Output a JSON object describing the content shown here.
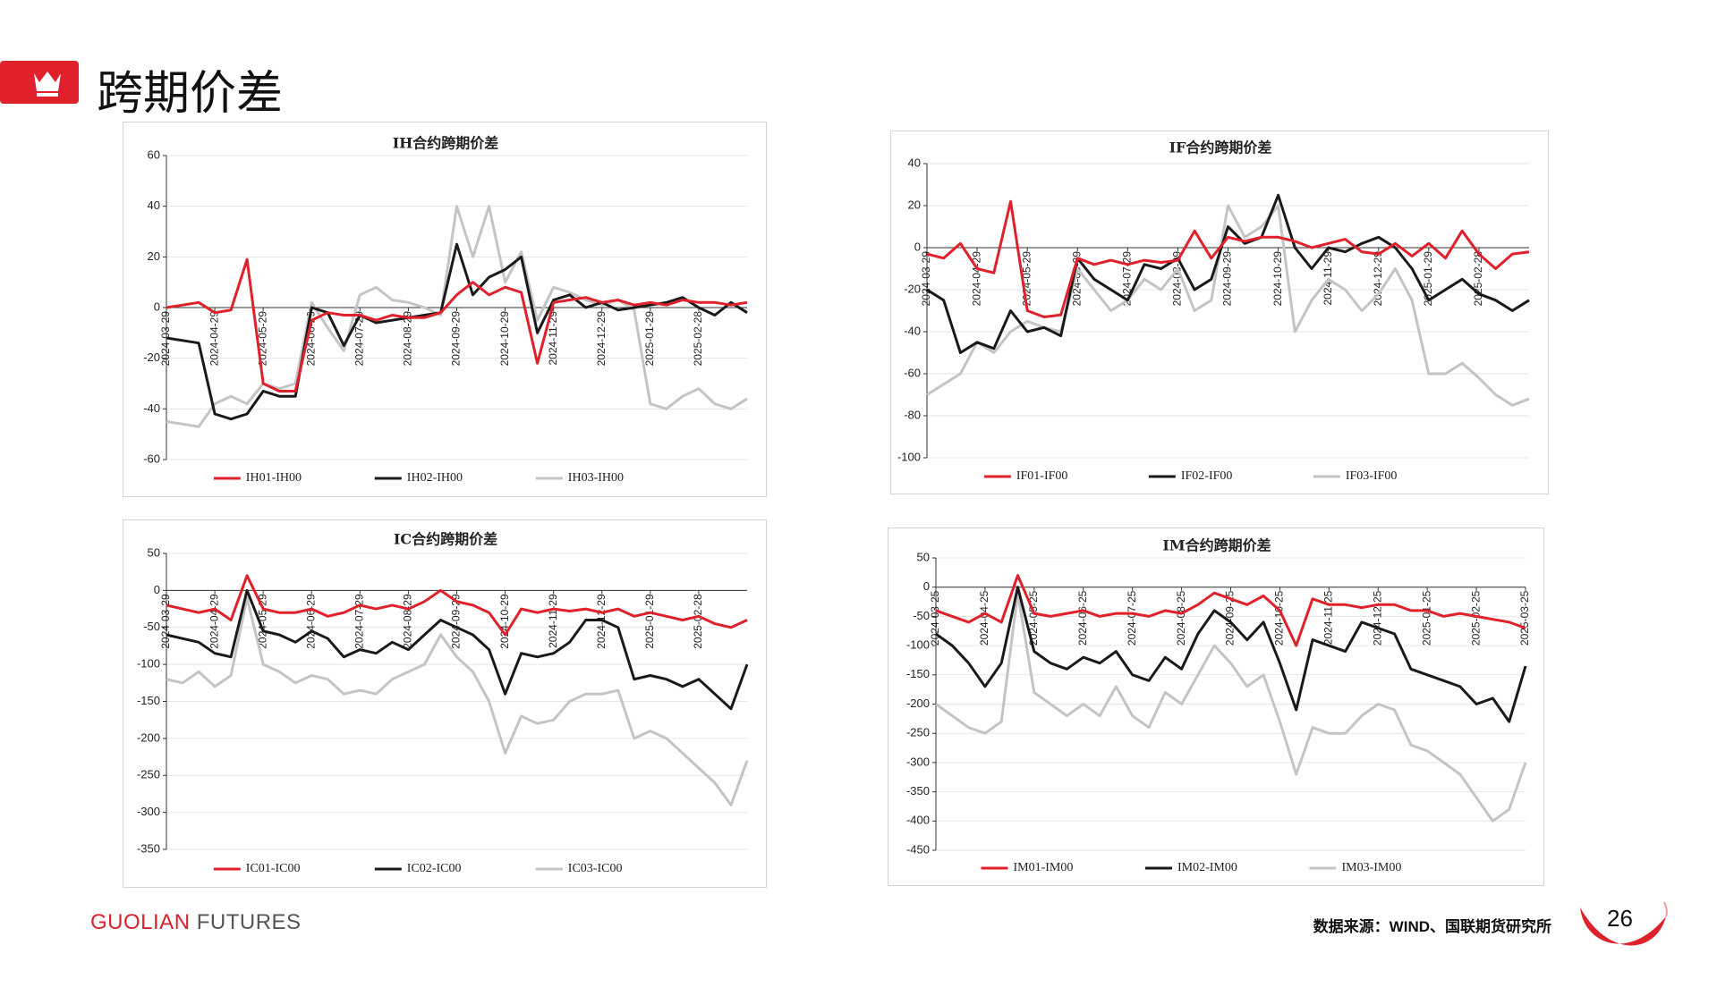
{
  "header": {
    "title": "跨期价差"
  },
  "footer": {
    "brand_1": "GUOLIAN",
    "brand_2": "FUTURES",
    "source": "数据来源：WIND、国联期货研究所",
    "page": "26"
  },
  "chart_data": [
    {
      "type": "line",
      "title": "IH合约跨期价差",
      "categories": [
        "2024-03-29",
        null,
        null,
        "2024-04-29",
        null,
        null,
        "2024-05-29",
        null,
        null,
        "2024-06-29",
        null,
        null,
        "2024-07-29",
        null,
        null,
        "2024-08-29",
        null,
        null,
        "2024-09-29",
        null,
        null,
        "2024-10-29",
        null,
        null,
        "2024-11-29",
        null,
        null,
        "2024-12-29",
        null,
        null,
        "2025-01-29",
        null,
        null,
        "2025-02-28",
        null,
        null,
        null
      ],
      "series": [
        {
          "name": "IH01-IH00",
          "color": "#e0202a",
          "values": [
            0,
            1,
            2,
            -2,
            -1,
            19,
            -30,
            -33,
            -33,
            -5,
            -2,
            -3,
            -3,
            -5,
            -3,
            -4,
            -4,
            -2,
            5,
            10,
            5,
            8,
            6,
            -22,
            2,
            3,
            4,
            2,
            3,
            1,
            2,
            1,
            3,
            2,
            2,
            1,
            2
          ]
        },
        {
          "name": "IH02-IH00",
          "color": "#1a1a1a",
          "values": [
            -12,
            -13,
            -14,
            -42,
            -44,
            -42,
            -33,
            -35,
            -35,
            0,
            -2,
            -15,
            -3,
            -6,
            -5,
            -4,
            -3,
            -2,
            25,
            5,
            12,
            15,
            20,
            -10,
            3,
            5,
            0,
            2,
            -1,
            0,
            1,
            2,
            4,
            0,
            -3,
            2,
            -2
          ]
        },
        {
          "name": "IH03-IH00",
          "color": "#c4c4c4",
          "values": [
            -45,
            -46,
            -47,
            -38,
            -35,
            -38,
            -30,
            -32,
            -30,
            2,
            -8,
            -17,
            5,
            8,
            3,
            2,
            0,
            -3,
            40,
            20,
            40,
            10,
            22,
            -5,
            8,
            6,
            3,
            1,
            3,
            -1,
            -38,
            -40,
            -35,
            -32,
            -38,
            -40,
            -36
          ]
        }
      ],
      "ylim": [
        -60,
        60
      ],
      "yticks": [
        -60,
        -40,
        -20,
        0,
        20,
        40,
        60
      ],
      "grid": true
    },
    {
      "type": "line",
      "title": "IF合约跨期价差",
      "categories": [
        "2024-03-29",
        null,
        null,
        "2024-04-29",
        null,
        null,
        "2024-05-29",
        null,
        null,
        "2024-06-29",
        null,
        null,
        "2024-07-29",
        null,
        null,
        "2024-08-29",
        null,
        null,
        "2024-09-29",
        null,
        null,
        "2024-10-29",
        null,
        null,
        "2024-11-29",
        null,
        null,
        "2024-12-29",
        null,
        null,
        "2025-01-29",
        null,
        null,
        "2025-02-28",
        null,
        null,
        null
      ],
      "series": [
        {
          "name": "IF01-IF00",
          "color": "#e0202a",
          "values": [
            -3,
            -5,
            2,
            -10,
            -12,
            22,
            -30,
            -33,
            -32,
            -5,
            -8,
            -6,
            -8,
            -6,
            -7,
            -6,
            8,
            -5,
            5,
            3,
            5,
            5,
            3,
            0,
            2,
            4,
            -2,
            -3,
            2,
            -4,
            2,
            -5,
            8,
            -3,
            -10,
            -3,
            -2
          ]
        },
        {
          "name": "IF02-IF00",
          "color": "#1a1a1a",
          "values": [
            -20,
            -25,
            -50,
            -45,
            -48,
            -30,
            -40,
            -38,
            -42,
            -5,
            -15,
            -20,
            -25,
            -8,
            -10,
            -5,
            -20,
            -15,
            10,
            2,
            5,
            25,
            0,
            -10,
            0,
            -2,
            2,
            5,
            0,
            -10,
            -25,
            -20,
            -15,
            -22,
            -25,
            -30,
            -25
          ]
        },
        {
          "name": "IF03-IF00",
          "color": "#c4c4c4",
          "values": [
            -70,
            -65,
            -60,
            -45,
            -50,
            -40,
            -35,
            -38,
            -40,
            -10,
            -20,
            -30,
            -25,
            -15,
            -20,
            -10,
            -30,
            -25,
            20,
            5,
            10,
            20,
            -40,
            -25,
            -15,
            -20,
            -30,
            -22,
            -10,
            -25,
            -60,
            -60,
            -55,
            -62,
            -70,
            -75,
            -72
          ]
        }
      ],
      "ylim": [
        -100,
        40
      ],
      "yticks": [
        -100,
        -80,
        -60,
        -40,
        -20,
        0,
        20,
        40
      ],
      "grid": true
    },
    {
      "type": "line",
      "title": "IC合约跨期价差",
      "categories": [
        "2024-03-29",
        null,
        null,
        "2024-04-29",
        null,
        null,
        "2024-05-29",
        null,
        null,
        "2024-06-29",
        null,
        null,
        "2024-07-29",
        null,
        null,
        "2024-08-29",
        null,
        null,
        "2024-09-29",
        null,
        null,
        "2024-10-29",
        null,
        null,
        "2024-11-29",
        null,
        null,
        "2024-12-29",
        null,
        null,
        "2025-01-29",
        null,
        null,
        "2025-02-28",
        null,
        null,
        null
      ],
      "series": [
        {
          "name": "IC01-IC00",
          "color": "#e0202a",
          "values": [
            -20,
            -25,
            -30,
            -25,
            -40,
            20,
            -25,
            -30,
            -30,
            -25,
            -35,
            -30,
            -20,
            -25,
            -20,
            -25,
            -15,
            0,
            -15,
            -20,
            -30,
            -60,
            -25,
            -30,
            -25,
            -28,
            -25,
            -30,
            -25,
            -35,
            -30,
            -35,
            -40,
            -35,
            -45,
            -50,
            -40
          ]
        },
        {
          "name": "IC02-IC00",
          "color": "#1a1a1a",
          "values": [
            -60,
            -65,
            -70,
            -85,
            -90,
            0,
            -55,
            -60,
            -70,
            -55,
            -65,
            -90,
            -80,
            -85,
            -70,
            -80,
            -60,
            -40,
            -50,
            -60,
            -80,
            -140,
            -85,
            -90,
            -85,
            -70,
            -40,
            -40,
            -50,
            -120,
            -115,
            -120,
            -130,
            -120,
            -140,
            -160,
            -100
          ]
        },
        {
          "name": "IC03-IC00",
          "color": "#c4c4c4",
          "values": [
            -120,
            -125,
            -110,
            -130,
            -115,
            -10,
            -100,
            -110,
            -125,
            -115,
            -120,
            -140,
            -135,
            -140,
            -120,
            -110,
            -100,
            -60,
            -90,
            -110,
            -150,
            -220,
            -170,
            -180,
            -175,
            -150,
            -140,
            -140,
            -135,
            -200,
            -190,
            -200,
            -220,
            -240,
            -260,
            -290,
            -230
          ]
        }
      ],
      "ylim": [
        -350,
        50
      ],
      "yticks": [
        -350,
        -300,
        -250,
        -200,
        -150,
        -100,
        -50,
        0,
        50
      ],
      "grid": true
    },
    {
      "type": "line",
      "title": "IM合约跨期价差",
      "categories": [
        "2024-03-25",
        null,
        null,
        "2024-04-25",
        null,
        null,
        "2024-05-25",
        null,
        null,
        "2024-06-25",
        null,
        null,
        "2024-07-25",
        null,
        null,
        "2024-08-25",
        null,
        null,
        "2024-09-25",
        null,
        null,
        "2024-10-25",
        null,
        null,
        "2024-11-25",
        null,
        null,
        "2024-12-25",
        null,
        null,
        "2025-01-25",
        null,
        null,
        "2025-02-25",
        null,
        null,
        "2025-03-25"
      ],
      "series": [
        {
          "name": "IM01-IM00",
          "color": "#e0202a",
          "values": [
            -40,
            -50,
            -60,
            -45,
            -60,
            20,
            -45,
            -50,
            -45,
            -40,
            -50,
            -45,
            -45,
            -50,
            -40,
            -45,
            -30,
            -10,
            -20,
            -30,
            -15,
            -40,
            -100,
            -20,
            -30,
            -30,
            -35,
            -30,
            -30,
            -40,
            -40,
            -50,
            -45,
            -50,
            -55,
            -60,
            -70
          ]
        },
        {
          "name": "IM02-IM00",
          "color": "#1a1a1a",
          "values": [
            -80,
            -100,
            -130,
            -170,
            -130,
            0,
            -110,
            -130,
            -140,
            -120,
            -130,
            -110,
            -150,
            -160,
            -120,
            -140,
            -80,
            -40,
            -60,
            -90,
            -60,
            -130,
            -210,
            -90,
            -100,
            -110,
            -60,
            -70,
            -80,
            -140,
            -150,
            -160,
            -170,
            -200,
            -190,
            -230,
            -135
          ]
        },
        {
          "name": "IM03-IM00",
          "color": "#c4c4c4",
          "values": [
            -200,
            -220,
            -240,
            -250,
            -230,
            -10,
            -180,
            -200,
            -220,
            -200,
            -220,
            -170,
            -220,
            -240,
            -180,
            -200,
            -150,
            -100,
            -130,
            -170,
            -150,
            -230,
            -320,
            -240,
            -250,
            -250,
            -220,
            -200,
            -210,
            -270,
            -280,
            -300,
            -320,
            -360,
            -400,
            -380,
            -300
          ]
        }
      ],
      "ylim": [
        -450,
        50
      ],
      "yticks": [
        -450,
        -400,
        -350,
        -300,
        -250,
        -200,
        -150,
        -100,
        -50,
        0,
        50
      ],
      "grid": true
    }
  ]
}
